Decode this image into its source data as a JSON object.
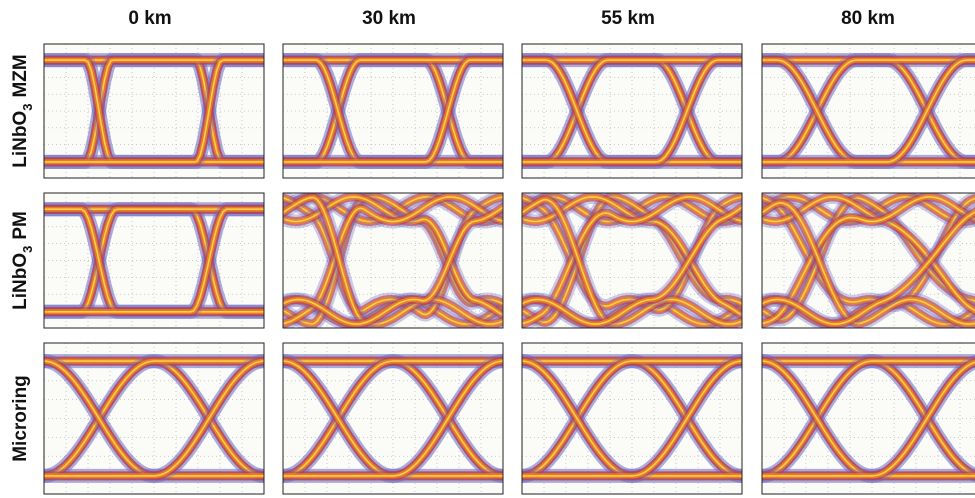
{
  "columns": [
    "0 km",
    "30 km",
    "55 km",
    "80 km"
  ],
  "rows": [
    {
      "main": "LiNbO",
      "sub": "3",
      "suffix": "MZM"
    },
    {
      "main": "LiNbO",
      "sub": "3",
      "suffix": "PM"
    },
    {
      "main": "Microring"
    }
  ]
}
